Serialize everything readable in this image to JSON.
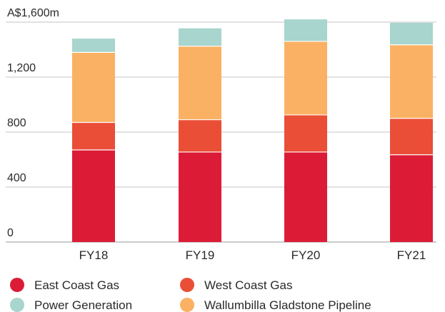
{
  "chart_data": {
    "type": "bar",
    "stacked": true,
    "title": "",
    "xlabel": "",
    "ylabel": "",
    "ylim": [
      0,
      1600
    ],
    "y_ticks": [
      {
        "value": 0,
        "label": "0"
      },
      {
        "value": 400,
        "label": "400"
      },
      {
        "value": 800,
        "label": "800"
      },
      {
        "value": 1200,
        "label": "1,200"
      },
      {
        "value": 1600,
        "label": "A$1,600m"
      }
    ],
    "grid": true,
    "legend_position": "bottom",
    "categories": [
      "FY18",
      "FY19",
      "FY20",
      "FY21"
    ],
    "series": [
      {
        "name": "East Coast Gas",
        "color": "#dc1c36",
        "values": [
          670,
          655,
          655,
          635
        ]
      },
      {
        "name": "West Coast Gas",
        "color": "#ea4e37",
        "values": [
          200,
          235,
          270,
          265
        ]
      },
      {
        "name": "Wallumbilla Gladstone Pipeline",
        "color": "#fbb163",
        "values": [
          510,
          535,
          535,
          535
        ]
      },
      {
        "name": "Power Generation",
        "color": "#a8d5cd",
        "values": [
          100,
          130,
          160,
          160
        ]
      }
    ],
    "legend_order": [
      "East Coast Gas",
      "West Coast Gas",
      "Power Generation",
      "Wallumbilla Gladstone Pipeline"
    ]
  }
}
